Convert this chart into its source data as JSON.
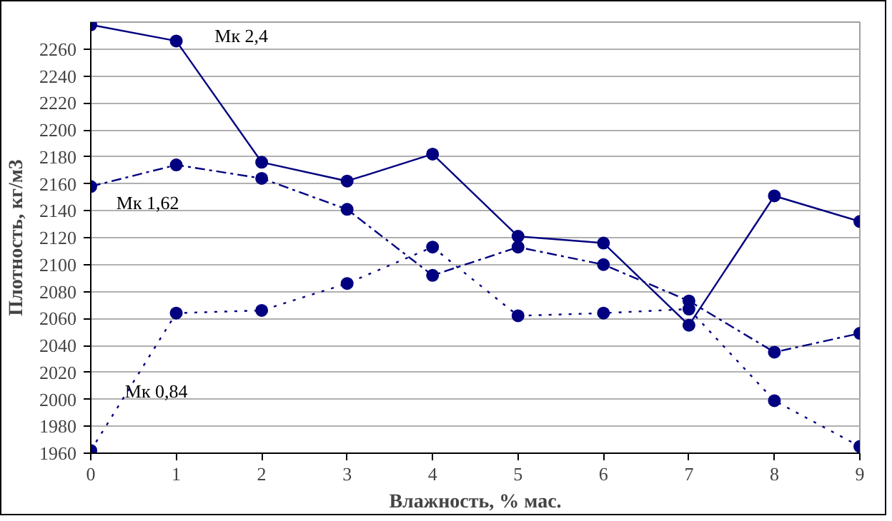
{
  "chart_data": {
    "type": "line",
    "xlabel": "Влажность, % мас.",
    "ylabel": "Плотность, кг/м3",
    "x": [
      0,
      1,
      2,
      3,
      4,
      5,
      6,
      7,
      8,
      9
    ],
    "series": [
      {
        "name": "Мк 2,4",
        "color": "#000080",
        "line_style": "solid",
        "values": [
          2278,
          2266,
          2176,
          2162,
          2182,
          2121,
          2116,
          2055,
          2151,
          2132
        ]
      },
      {
        "name": "Мк 1,62",
        "color": "#000080",
        "line_style": "dashed",
        "values": [
          2158,
          2174,
          2164,
          2141,
          2092,
          2113,
          2100,
          2073,
          2035,
          2049
        ]
      },
      {
        "name": "Мк 0,84",
        "color": "#000080",
        "line_style": "dotted",
        "values": [
          1962,
          2064,
          2066,
          2086,
          2113,
          2062,
          2064,
          2067,
          1999,
          1965
        ]
      }
    ],
    "xlim": [
      0,
      9
    ],
    "xticks": [
      0,
      1,
      2,
      3,
      4,
      5,
      6,
      7,
      8,
      9
    ],
    "ylim": [
      1960,
      2280
    ],
    "yticks": [
      1960,
      1980,
      2000,
      2020,
      2040,
      2060,
      2080,
      2100,
      2120,
      2140,
      2160,
      2180,
      2200,
      2220,
      2240,
      2260
    ],
    "grid": "y",
    "marker": "circle"
  }
}
